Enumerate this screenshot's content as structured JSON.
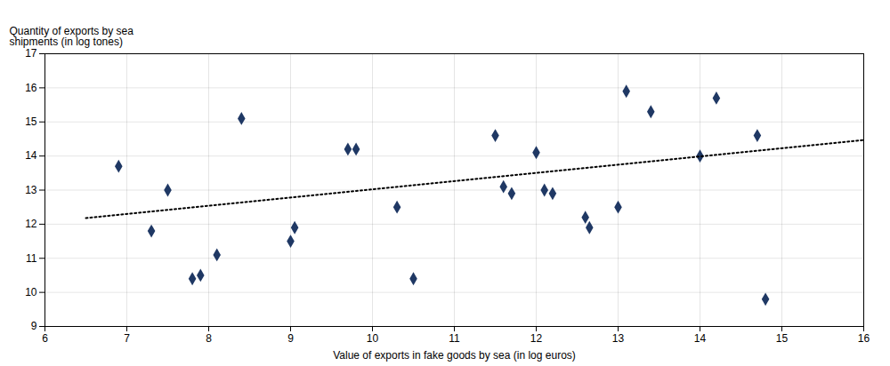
{
  "chart_data": {
    "type": "scatter",
    "xlabel": "Value of exports in fake goods by sea (in log euros)",
    "ylabel": "Quantity of exports by sea\nshipments (in log tones)",
    "series": [
      {
        "type": "scatter",
        "color": "#1F3864",
        "marker": "diamond",
        "x": [
          6.9,
          7.3,
          7.5,
          7.8,
          7.9,
          8.1,
          8.4,
          9.0,
          9.05,
          9.7,
          9.8,
          10.3,
          10.5,
          11.5,
          11.6,
          11.7,
          12.0,
          12.1,
          12.2,
          12.6,
          12.65,
          13.0,
          13.1,
          13.4,
          14.0,
          14.2,
          14.7,
          14.8
        ],
        "values": [
          13.7,
          11.8,
          13.0,
          10.4,
          10.5,
          11.1,
          15.1,
          11.5,
          11.9,
          14.2,
          14.2,
          12.5,
          10.4,
          14.6,
          13.1,
          12.9,
          14.1,
          13.0,
          12.9,
          12.2,
          11.9,
          12.5,
          15.9,
          15.3,
          14.0,
          15.7,
          14.6,
          9.8
        ]
      },
      {
        "type": "line",
        "color": "#000000",
        "line_style": "dotted",
        "x": [
          6.5,
          16.0
        ],
        "values": [
          12.18,
          14.47
        ]
      }
    ],
    "xlim": [
      6,
      16
    ],
    "ylim": [
      9,
      17
    ],
    "xticks": [
      6,
      7,
      8,
      9,
      10,
      11,
      12,
      13,
      14,
      15,
      16
    ],
    "yticks": [
      9,
      10,
      11,
      12,
      13,
      14,
      15,
      16,
      17
    ],
    "grid": true
  }
}
